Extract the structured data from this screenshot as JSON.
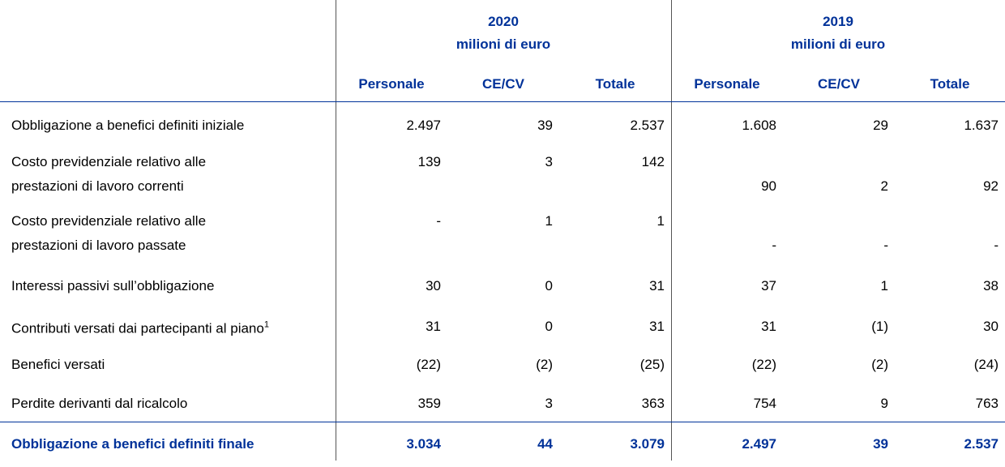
{
  "header": {
    "groups": [
      {
        "year": "2020",
        "unit": "milioni di euro"
      },
      {
        "year": "2019",
        "unit": "milioni di euro"
      }
    ],
    "columns": [
      "Personale",
      "CE/CV",
      "Totale",
      "Personale",
      "CE/CV",
      "Totale"
    ]
  },
  "table": {
    "rows": [
      {
        "label": [
          "Obbligazione a benefici definiti iniziale"
        ],
        "values": [
          "2.497",
          "39",
          "2.537",
          "1.608",
          "29",
          "1.637"
        ]
      },
      {
        "label": [
          "Costo previdenziale relativo alle",
          "prestazioni di lavoro correnti"
        ],
        "values": [
          "139",
          "3",
          "142",
          "90",
          "2",
          "92"
        ]
      },
      {
        "label": [
          "Costo previdenziale relativo alle",
          "prestazioni di lavoro passate"
        ],
        "values": [
          "-",
          "1",
          "1",
          "-",
          "-",
          "-"
        ]
      },
      {
        "label": [
          "Interessi passivi sull’obbligazione"
        ],
        "values": [
          "30",
          "0",
          "31",
          "37",
          "1",
          "38"
        ]
      },
      {
        "label": [
          "Contributi versati dai partecipanti al piano"
        ],
        "note": "1",
        "values": [
          "31",
          "0",
          "31",
          "31",
          "(1)",
          "30"
        ]
      },
      {
        "label": [
          "Benefici versati"
        ],
        "values": [
          "(22)",
          "(2)",
          "(25)",
          "(22)",
          "(2)",
          "(24)"
        ]
      },
      {
        "label": [
          "Perdite derivanti dal ricalcolo"
        ],
        "values": [
          "359",
          "3",
          "363",
          "754",
          "9",
          "763"
        ]
      }
    ],
    "total": {
      "label": "Obbligazione a benefici definiti finale",
      "values": [
        "3.034",
        "44",
        "3.079",
        "2.497",
        "39",
        "2.537"
      ]
    }
  }
}
